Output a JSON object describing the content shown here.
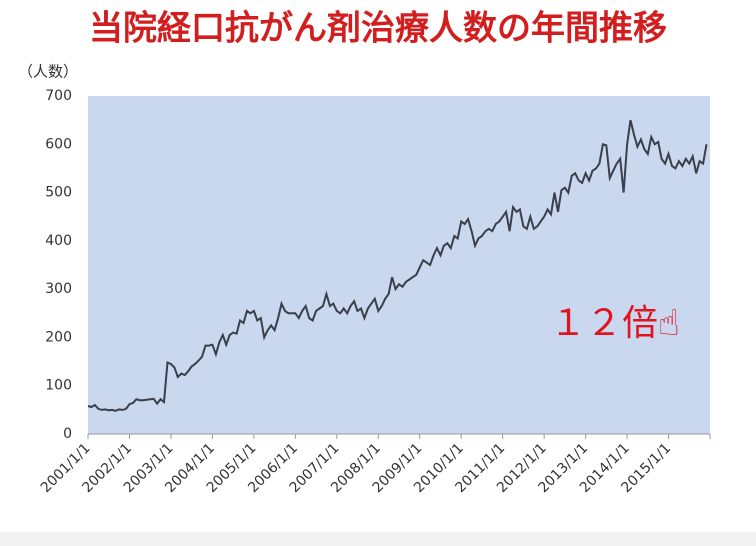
{
  "chart_data": {
    "type": "line",
    "title": "当院経口抗がん剤治療人数の年間推移",
    "y_label": "（人数）",
    "annotation": "１２倍☝",
    "color": "#3a3f4a",
    "background": "#c9d7ef",
    "categories": [
      "2001/1/1",
      null,
      null,
      null,
      null,
      null,
      null,
      null,
      null,
      null,
      null,
      null,
      "2002/1/1",
      null,
      null,
      null,
      null,
      null,
      null,
      null,
      null,
      null,
      null,
      null,
      "2003/1/1",
      null,
      null,
      null,
      null,
      null,
      null,
      null,
      null,
      null,
      null,
      null,
      "2004/1/1",
      null,
      null,
      null,
      null,
      null,
      null,
      null,
      null,
      null,
      null,
      null,
      "2005/1/1",
      null,
      null,
      null,
      null,
      null,
      null,
      null,
      null,
      null,
      null,
      null,
      "2006/1/1",
      null,
      null,
      null,
      null,
      null,
      null,
      null,
      null,
      null,
      null,
      null,
      "2007/1/1",
      null,
      null,
      null,
      null,
      null,
      null,
      null,
      null,
      null,
      null,
      null,
      "2008/1/1",
      null,
      null,
      null,
      null,
      null,
      null,
      null,
      null,
      null,
      null,
      null,
      "2009/1/1",
      null,
      null,
      null,
      null,
      null,
      null,
      null,
      null,
      null,
      null,
      null,
      "2010/1/1",
      null,
      null,
      null,
      null,
      null,
      null,
      null,
      null,
      null,
      null,
      null,
      "2011/1/1",
      null,
      null,
      null,
      null,
      null,
      null,
      null,
      null,
      null,
      null,
      null,
      "2012/1/1",
      null,
      null,
      null,
      null,
      null,
      null,
      null,
      null,
      null,
      null,
      null,
      "2013/1/1",
      null,
      null,
      null,
      null,
      null,
      null,
      null,
      null,
      null,
      null,
      null,
      "2014/1/1",
      null,
      null,
      null,
      null,
      null,
      null,
      null,
      null,
      null,
      null,
      null,
      "2015/1/1",
      null,
      null,
      null,
      null,
      null,
      null,
      null,
      null,
      null,
      null,
      null
    ],
    "values": [
      58,
      56,
      60,
      52,
      50,
      51,
      49,
      50,
      48,
      51,
      50,
      52,
      62,
      64,
      72,
      70,
      70,
      71,
      72,
      73,
      63,
      72,
      66,
      148,
      145,
      138,
      118,
      125,
      122,
      130,
      140,
      145,
      152,
      160,
      183,
      183,
      185,
      165,
      190,
      205,
      185,
      205,
      210,
      208,
      235,
      230,
      255,
      250,
      255,
      235,
      240,
      200,
      215,
      225,
      215,
      240,
      270,
      255,
      250,
      250,
      250,
      240,
      255,
      265,
      240,
      235,
      255,
      260,
      265,
      290,
      265,
      270,
      255,
      250,
      260,
      250,
      265,
      275,
      255,
      260,
      240,
      260,
      270,
      280,
      255,
      265,
      280,
      290,
      325,
      300,
      310,
      305,
      315,
      320,
      325,
      330,
      345,
      360,
      355,
      350,
      370,
      385,
      370,
      390,
      395,
      385,
      410,
      405,
      440,
      435,
      445,
      420,
      390,
      405,
      410,
      420,
      425,
      420,
      435,
      440,
      450,
      460,
      420,
      470,
      460,
      465,
      430,
      425,
      450,
      425,
      430,
      440,
      450,
      465,
      455,
      500,
      460,
      505,
      510,
      500,
      535,
      540,
      525,
      520,
      540,
      525,
      545,
      550,
      560,
      600,
      598,
      530,
      545,
      560,
      570,
      500,
      600,
      650,
      620,
      595,
      610,
      590,
      580,
      615,
      600,
      605,
      570,
      560,
      580,
      555,
      550,
      565,
      555,
      570,
      560,
      575,
      540,
      565,
      560,
      600
    ],
    "ylim": [
      0,
      700
    ],
    "yticks": [
      0,
      100,
      200,
      300,
      400,
      500,
      600,
      700
    ],
    "grid": false
  }
}
